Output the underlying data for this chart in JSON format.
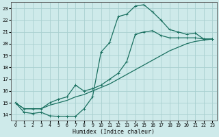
{
  "background_color": "#ceeaea",
  "grid_color": "#aad0d0",
  "line_color": "#1a7060",
  "xlabel": "Humidex (Indice chaleur)",
  "xlim": [
    -0.5,
    23.5
  ],
  "ylim": [
    13.5,
    23.5
  ],
  "yticks": [
    14,
    15,
    16,
    17,
    18,
    19,
    20,
    21,
    22,
    23
  ],
  "xticks": [
    0,
    1,
    2,
    3,
    4,
    5,
    6,
    7,
    8,
    9,
    10,
    11,
    12,
    13,
    14,
    15,
    16,
    17,
    18,
    19,
    20,
    21,
    22,
    23
  ],
  "line1_x": [
    0,
    1,
    2,
    3,
    4,
    5,
    6,
    7,
    8,
    9,
    10,
    11,
    12,
    13,
    14,
    15,
    16,
    17,
    18,
    19,
    20,
    21,
    22,
    23
  ],
  "line1_y": [
    15.0,
    14.2,
    14.1,
    14.2,
    13.9,
    13.85,
    13.85,
    13.85,
    14.5,
    15.5,
    19.3,
    20.1,
    22.3,
    22.5,
    23.2,
    23.3,
    22.7,
    22.0,
    21.2,
    21.0,
    20.8,
    20.9,
    20.4,
    20.4
  ],
  "line2_x": [
    0,
    1,
    2,
    3,
    4,
    5,
    6,
    7,
    8,
    9,
    10,
    11,
    12,
    13,
    14,
    15,
    16,
    17,
    18,
    19,
    20,
    21,
    22,
    23
  ],
  "line2_y": [
    15.0,
    14.5,
    14.5,
    14.5,
    15.0,
    15.3,
    15.5,
    16.5,
    16.0,
    16.2,
    16.5,
    17.0,
    17.5,
    18.5,
    20.8,
    21.0,
    21.1,
    20.7,
    20.5,
    20.5,
    20.5,
    20.5,
    20.4,
    20.4
  ],
  "line3_x": [
    0,
    1,
    2,
    3,
    4,
    5,
    6,
    7,
    8,
    9,
    10,
    11,
    12,
    13,
    14,
    15,
    16,
    17,
    18,
    19,
    20,
    21,
    22,
    23
  ],
  "line3_y": [
    15.0,
    14.5,
    14.5,
    14.5,
    14.8,
    15.0,
    15.2,
    15.5,
    15.7,
    16.0,
    16.3,
    16.6,
    17.0,
    17.4,
    17.8,
    18.2,
    18.6,
    19.0,
    19.4,
    19.7,
    20.0,
    20.2,
    20.3,
    20.4
  ]
}
